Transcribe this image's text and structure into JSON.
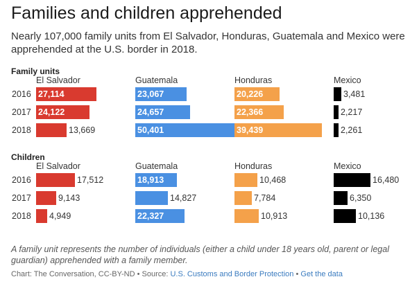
{
  "header": {
    "title": "Families and children apprehended",
    "subtitle": "Nearly 107,000 family units from El Salvador, Honduras, Guatemala and Mexico were apprehended at the U.S. border in 2018."
  },
  "chart_data": {
    "type": "bar",
    "title": "Families and children apprehended",
    "countries": [
      "El Salvador",
      "Guatemala",
      "Honduras",
      "Mexico"
    ],
    "colors": {
      "El Salvador": "#d93a2f",
      "Guatemala": "#4a90e2",
      "Honduras": "#f4a14a",
      "Mexico": "#000000"
    },
    "panels": [
      {
        "label": "Family units",
        "years": [
          "2016",
          "2017",
          "2018"
        ],
        "series": [
          {
            "name": "El Salvador",
            "values": [
              27114,
              24122,
              13669
            ]
          },
          {
            "name": "Guatemala",
            "values": [
              23067,
              24657,
              50401
            ]
          },
          {
            "name": "Honduras",
            "values": [
              20226,
              22366,
              39439
            ]
          },
          {
            "name": "Mexico",
            "values": [
              3481,
              2217,
              2261
            ]
          }
        ]
      },
      {
        "label": "Children",
        "years": [
          "2016",
          "2017",
          "2018"
        ],
        "series": [
          {
            "name": "El Salvador",
            "values": [
              17512,
              9143,
              4949
            ]
          },
          {
            "name": "Guatemala",
            "values": [
              18913,
              14827,
              22327
            ]
          },
          {
            "name": "Honduras",
            "values": [
              10468,
              7784,
              10913
            ]
          },
          {
            "name": "Mexico",
            "values": [
              16480,
              6350,
              10136
            ]
          }
        ]
      }
    ]
  },
  "footer": {
    "note": "A family unit represents the number of individuals (either a child under 18 years old, parent or legal guardian) apprehended with a family member.",
    "credit": "Chart: The Conversation, CC-BY-ND",
    "source_prefix": "Source:",
    "source_link": "U.S. Customs and Border Protection",
    "data_link": "Get the data",
    "separator": "•"
  }
}
